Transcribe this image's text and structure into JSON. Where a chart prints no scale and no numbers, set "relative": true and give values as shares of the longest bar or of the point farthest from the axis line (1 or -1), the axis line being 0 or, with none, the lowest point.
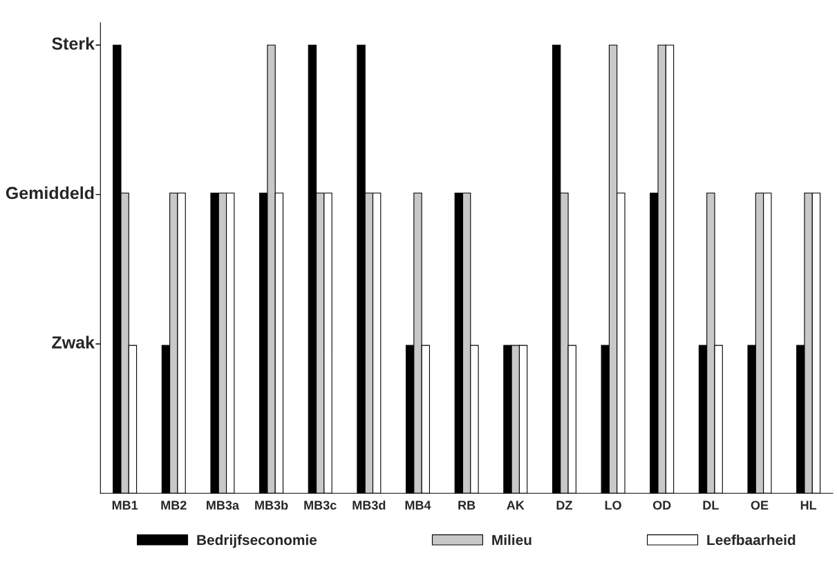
{
  "chart_data": {
    "type": "bar",
    "relative": true,
    "categories": [
      "MB1",
      "MB2",
      "MB3a",
      "MB3b",
      "MB3c",
      "MB3d",
      "MB4",
      "RB",
      "AK",
      "DZ",
      "LO",
      "OD",
      "DL",
      "OE",
      "HL"
    ],
    "series": [
      {
        "name": "Bedrijfseconomie",
        "color": "#000000",
        "values": [
          1,
          0.33,
          0.67,
          0.67,
          1,
          1,
          0.33,
          0.67,
          0.33,
          1,
          0.33,
          0.67,
          0.33,
          0.33,
          0.33
        ]
      },
      {
        "name": "Milieu",
        "color": "#c8c8c8",
        "values": [
          0.67,
          0.67,
          0.67,
          1,
          0.67,
          0.67,
          0.67,
          0.67,
          0.33,
          0.67,
          1,
          1,
          0.67,
          0.67,
          0.67
        ]
      },
      {
        "name": "Leefbaarheid",
        "color": "#ffffff",
        "values": [
          0.33,
          0.67,
          0.67,
          0.67,
          0.67,
          0.67,
          0.33,
          0.33,
          0.33,
          0.33,
          0.67,
          1,
          0.33,
          0.67,
          0.67
        ]
      }
    ],
    "annotations": [
      "Zwak",
      "Gemiddeld",
      "Sterk"
    ],
    "grid": false,
    "legend": "bottom"
  }
}
